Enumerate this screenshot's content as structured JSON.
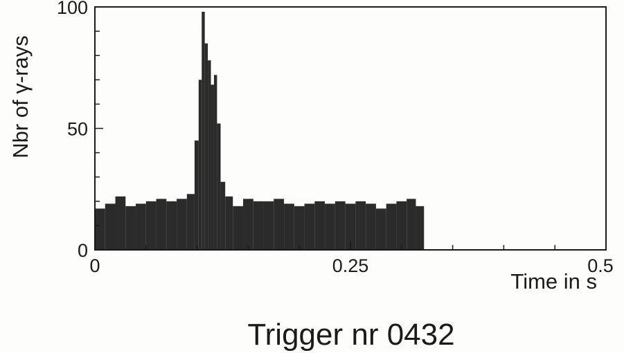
{
  "chart_data": {
    "type": "bar",
    "title": "Trigger nr 0432",
    "xlabel": "Time in s",
    "ylabel": "Nbr of γ-rays",
    "xlim": [
      0,
      0.5
    ],
    "ylim": [
      0,
      100
    ],
    "xticks": [
      {
        "value": 0,
        "label": "0"
      },
      {
        "value": 0.25,
        "label": "0.25"
      },
      {
        "value": 0.5,
        "label": "0.5"
      }
    ],
    "yticks": [
      {
        "value": 0,
        "label": "0"
      },
      {
        "value": 50,
        "label": "50"
      },
      {
        "value": 100,
        "label": "100"
      }
    ],
    "bar_color": "#2b2b2b",
    "grid": false,
    "x": [
      0.005,
      0.015,
      0.025,
      0.035,
      0.045,
      0.055,
      0.065,
      0.075,
      0.085,
      0.095,
      0.1,
      0.103,
      0.106,
      0.109,
      0.112,
      0.115,
      0.118,
      0.121,
      0.125,
      0.13,
      0.14,
      0.15,
      0.16,
      0.17,
      0.18,
      0.19,
      0.2,
      0.21,
      0.22,
      0.23,
      0.24,
      0.25,
      0.26,
      0.27,
      0.28,
      0.29,
      0.3,
      0.31,
      0.318
    ],
    "values": [
      17,
      19,
      22,
      18,
      19,
      20,
      21,
      20,
      21,
      23,
      45,
      70,
      98,
      85,
      78,
      68,
      72,
      52,
      28,
      22,
      18,
      21,
      20,
      20,
      21,
      19,
      18,
      19,
      20,
      19,
      20,
      19,
      20,
      19,
      17,
      19,
      20,
      21,
      18
    ]
  }
}
